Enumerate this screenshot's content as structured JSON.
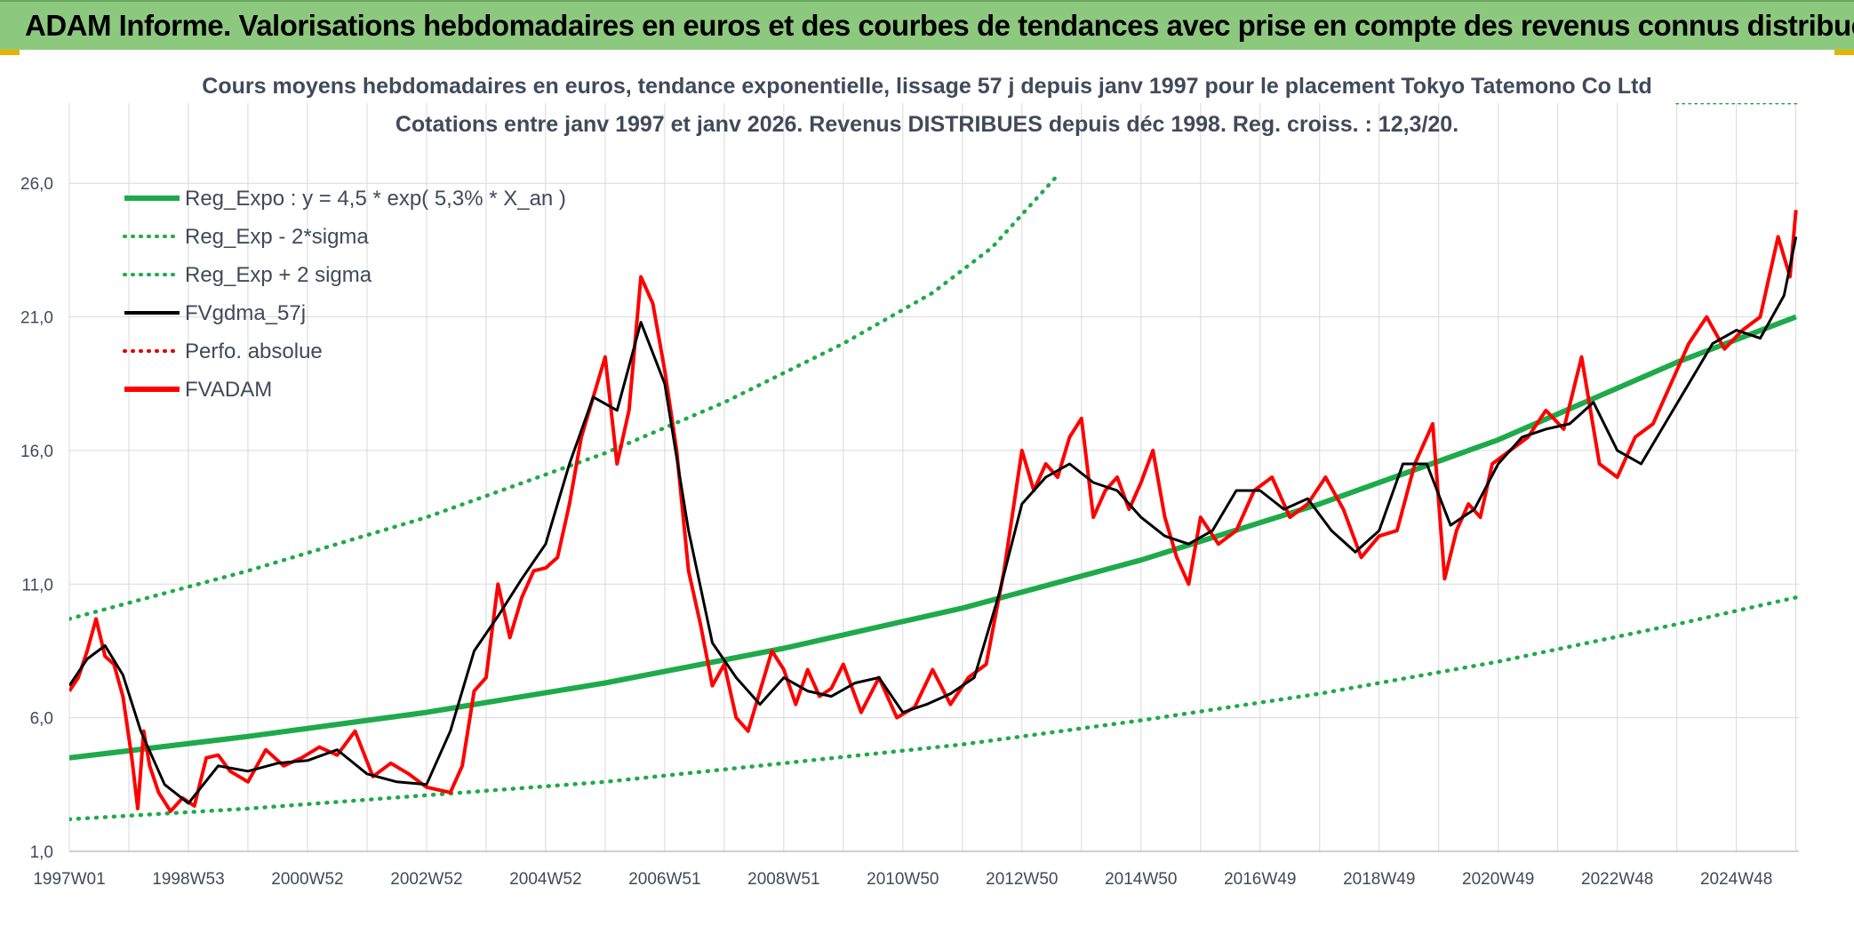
{
  "banner": {
    "title": "ADAM Informe. Valorisations hebdomadaires en euros et des courbes de tendances avec prise en compte des revenus connus distribués"
  },
  "colors": {
    "banner_bg": "#8cc97e",
    "reg_expo": "#1faa4a",
    "sigma_bands": "#1faa4a",
    "fvgdma": "#000000",
    "perfo_absolue": "#e00000",
    "fvadam": "#ff0000",
    "grid": "#d9d9d9"
  },
  "chart_data": {
    "type": "line",
    "title": "Cours moyens hebdomadaires en euros, tendance exponentielle, lissage 57 j depuis janv 1997 pour le placement Tokyo Tatemono Co Ltd",
    "subtitle": "Cotations entre janv 1997 et janv 2026. Revenus DISTRIBUES depuis déc 1998. Reg. croiss. : 12,3/20.",
    "xlabel": "",
    "ylabel": "",
    "xlim": [
      1997.0,
      2026.05
    ],
    "ylim": [
      1.0,
      29.0
    ],
    "y_ticks": [
      "1,0",
      "6,0",
      "11,0",
      "16,0",
      "21,0",
      "26,0"
    ],
    "y_tick_values": [
      1,
      6,
      11,
      16,
      21,
      26
    ],
    "x_tick_labels": [
      "1997W01",
      "1998W53",
      "2000W52",
      "2002W52",
      "2004W52",
      "2006W51",
      "2008W51",
      "2010W50",
      "2012W50",
      "2014W50",
      "2016W49",
      "2018W49",
      "2020W49",
      "2022W48",
      "2024W48"
    ],
    "x_tick_values": [
      1997.0,
      1999.0,
      2001.0,
      2003.0,
      2005.0,
      2007.0,
      2009.0,
      2011.0,
      2013.0,
      2015.0,
      2017.0,
      2019.0,
      2021.0,
      2023.0,
      2025.0
    ],
    "grid": true,
    "legend_position": "top-left",
    "legend": [
      {
        "label": "Reg_Expo : y = 4,5 * exp( 5,3% *  X_an )",
        "style": "solid-thick",
        "color_key": "reg_expo"
      },
      {
        "label": "Reg_Exp - 2*sigma",
        "style": "dotted",
        "color_key": "sigma_bands"
      },
      {
        "label": "Reg_Exp + 2 sigma",
        "style": "dotted",
        "color_key": "sigma_bands"
      },
      {
        "label": "FVgdma_57j",
        "style": "solid",
        "color_key": "fvgdma"
      },
      {
        "label": "Perfo. absolue",
        "style": "dotted",
        "color_key": "perfo_absolue"
      },
      {
        "label": "FVADAM",
        "style": "solid-thick",
        "color_key": "fvadam"
      }
    ],
    "reg_expo": {
      "a": 4.5,
      "rate": 0.053,
      "start_year": 1997.0
    },
    "series": [
      {
        "name": "Reg_Expo : y = 4,5 * exp( 5,3% *  X_an )",
        "x": [
          1997.0,
          2000.0,
          2003.0,
          2006.0,
          2009.0,
          2012.0,
          2015.0,
          2018.0,
          2021.0,
          2024.0,
          2026.0
        ],
        "values": [
          4.5,
          5.3,
          6.2,
          7.3,
          8.6,
          10.1,
          11.9,
          14.0,
          16.4,
          19.3,
          21.0
        ]
      },
      {
        "name": "Reg_Exp - 2*sigma",
        "x": [
          1997.0,
          2000.0,
          2003.0,
          2006.0,
          2009.0,
          2012.0,
          2015.0,
          2018.0,
          2021.0,
          2024.0,
          2026.0
        ],
        "values": [
          2.2,
          2.6,
          3.1,
          3.6,
          4.3,
          5.0,
          5.9,
          6.9,
          8.1,
          9.5,
          10.5
        ]
      },
      {
        "name": "Reg_Exp + 2 sigma",
        "x": [
          1997.0,
          2000.0,
          2003.0,
          2006.0,
          2008.0,
          2010.0,
          2011.5,
          2012.5,
          2013.6
        ],
        "values": [
          9.7,
          11.5,
          13.5,
          15.9,
          17.8,
          20.0,
          21.9,
          23.6,
          26.3
        ]
      },
      {
        "name": "Reg_Exp + 2 sigma (upper, clipped)",
        "x": [
          2024.0,
          2026.0
        ],
        "values": [
          29.0,
          29.0
        ]
      },
      {
        "name": "FVgdma_57j",
        "x": [
          1997.0,
          1997.3,
          1997.6,
          1997.9,
          1998.2,
          1998.6,
          1999.0,
          1999.5,
          2000.0,
          2000.5,
          2001.0,
          2001.5,
          2002.0,
          2002.5,
          2003.0,
          2003.4,
          2003.8,
          2004.2,
          2004.6,
          2005.0,
          2005.4,
          2005.8,
          2006.2,
          2006.6,
          2007.0,
          2007.4,
          2007.8,
          2008.2,
          2008.6,
          2009.0,
          2009.4,
          2009.8,
          2010.2,
          2010.6,
          2011.0,
          2011.4,
          2011.8,
          2012.2,
          2012.6,
          2013.0,
          2013.4,
          2013.8,
          2014.2,
          2014.6,
          2015.0,
          2015.4,
          2015.8,
          2016.2,
          2016.6,
          2017.0,
          2017.4,
          2017.8,
          2018.2,
          2018.6,
          2019.0,
          2019.4,
          2019.8,
          2020.2,
          2020.6,
          2021.0,
          2021.4,
          2021.8,
          2022.2,
          2022.6,
          2023.0,
          2023.4,
          2023.8,
          2024.2,
          2024.6,
          2025.0,
          2025.4,
          2025.8,
          2026.0
        ],
        "values": [
          7.2,
          8.2,
          8.7,
          7.6,
          5.5,
          3.5,
          2.8,
          4.2,
          4.0,
          4.3,
          4.4,
          4.8,
          3.9,
          3.6,
          3.5,
          5.5,
          8.5,
          9.8,
          11.2,
          12.5,
          15.5,
          18.0,
          17.5,
          20.8,
          18.5,
          13.0,
          8.8,
          7.5,
          6.5,
          7.5,
          7.0,
          6.8,
          7.3,
          7.5,
          6.2,
          6.5,
          6.9,
          7.5,
          10.5,
          14.0,
          15.0,
          15.5,
          14.8,
          14.5,
          13.5,
          12.8,
          12.5,
          13.0,
          14.5,
          14.5,
          13.8,
          14.2,
          13.0,
          12.2,
          13.0,
          15.5,
          15.5,
          13.2,
          13.8,
          15.5,
          16.5,
          16.8,
          17.0,
          17.8,
          16.0,
          15.5,
          17.0,
          18.5,
          20.0,
          20.5,
          20.2,
          21.8,
          24.0
        ]
      },
      {
        "name": "FVADAM",
        "x": [
          1997.0,
          1997.15,
          1997.3,
          1997.45,
          1997.6,
          1997.75,
          1997.9,
          1998.05,
          1998.15,
          1998.25,
          1998.35,
          1998.5,
          1998.7,
          1998.9,
          1999.1,
          1999.3,
          1999.5,
          1999.7,
          2000.0,
          2000.3,
          2000.6,
          2000.9,
          2001.2,
          2001.5,
          2001.8,
          2002.1,
          2002.4,
          2002.7,
          2003.0,
          2003.2,
          2003.4,
          2003.6,
          2003.8,
          2004.0,
          2004.2,
          2004.4,
          2004.6,
          2004.8,
          2005.0,
          2005.2,
          2005.4,
          2005.6,
          2005.8,
          2006.0,
          2006.2,
          2006.4,
          2006.6,
          2006.8,
          2007.0,
          2007.2,
          2007.4,
          2007.6,
          2007.8,
          2008.0,
          2008.2,
          2008.4,
          2008.6,
          2008.8,
          2009.0,
          2009.2,
          2009.4,
          2009.6,
          2009.8,
          2010.0,
          2010.3,
          2010.6,
          2010.9,
          2011.2,
          2011.5,
          2011.8,
          2012.1,
          2012.4,
          2012.7,
          2013.0,
          2013.2,
          2013.4,
          2013.6,
          2013.8,
          2014.0,
          2014.2,
          2014.4,
          2014.6,
          2014.8,
          2015.0,
          2015.2,
          2015.4,
          2015.6,
          2015.8,
          2016.0,
          2016.3,
          2016.6,
          2016.9,
          2017.2,
          2017.5,
          2017.8,
          2018.1,
          2018.4,
          2018.7,
          2019.0,
          2019.3,
          2019.6,
          2019.9,
          2020.1,
          2020.3,
          2020.5,
          2020.7,
          2020.9,
          2021.2,
          2021.5,
          2021.8,
          2022.1,
          2022.4,
          2022.7,
          2023.0,
          2023.3,
          2023.6,
          2023.9,
          2024.2,
          2024.5,
          2024.8,
          2025.1,
          2025.4,
          2025.7,
          2025.9,
          2026.0
        ],
        "values": [
          7.0,
          7.5,
          8.5,
          9.7,
          8.3,
          8.0,
          6.8,
          4.5,
          2.6,
          5.5,
          4.2,
          3.2,
          2.5,
          3.0,
          2.7,
          4.5,
          4.6,
          4.0,
          3.6,
          4.8,
          4.2,
          4.5,
          4.9,
          4.6,
          5.5,
          3.8,
          4.3,
          3.9,
          3.4,
          3.3,
          3.2,
          4.2,
          7.0,
          7.5,
          11.0,
          9.0,
          10.5,
          11.5,
          11.6,
          12.0,
          14.0,
          16.5,
          18.0,
          19.5,
          15.5,
          17.5,
          22.5,
          21.5,
          19.0,
          16.0,
          11.5,
          9.5,
          7.2,
          8.0,
          6.0,
          5.5,
          7.0,
          8.5,
          7.8,
          6.5,
          7.8,
          6.8,
          7.1,
          8.0,
          6.2,
          7.5,
          6.0,
          6.4,
          7.8,
          6.5,
          7.5,
          8.0,
          11.5,
          16.0,
          14.5,
          15.5,
          15.0,
          16.5,
          17.2,
          13.5,
          14.5,
          15.0,
          13.8,
          14.8,
          16.0,
          13.5,
          12.0,
          11.0,
          13.5,
          12.5,
          13.0,
          14.5,
          15.0,
          13.5,
          14.0,
          15.0,
          13.8,
          12.0,
          12.8,
          13.0,
          15.5,
          17.0,
          11.2,
          13.0,
          14.0,
          13.5,
          15.5,
          16.0,
          16.5,
          17.5,
          16.8,
          19.5,
          15.5,
          15.0,
          16.5,
          17.0,
          18.5,
          20.0,
          21.0,
          19.8,
          20.5,
          21.0,
          24.0,
          22.5,
          25.0
        ]
      }
    ]
  }
}
